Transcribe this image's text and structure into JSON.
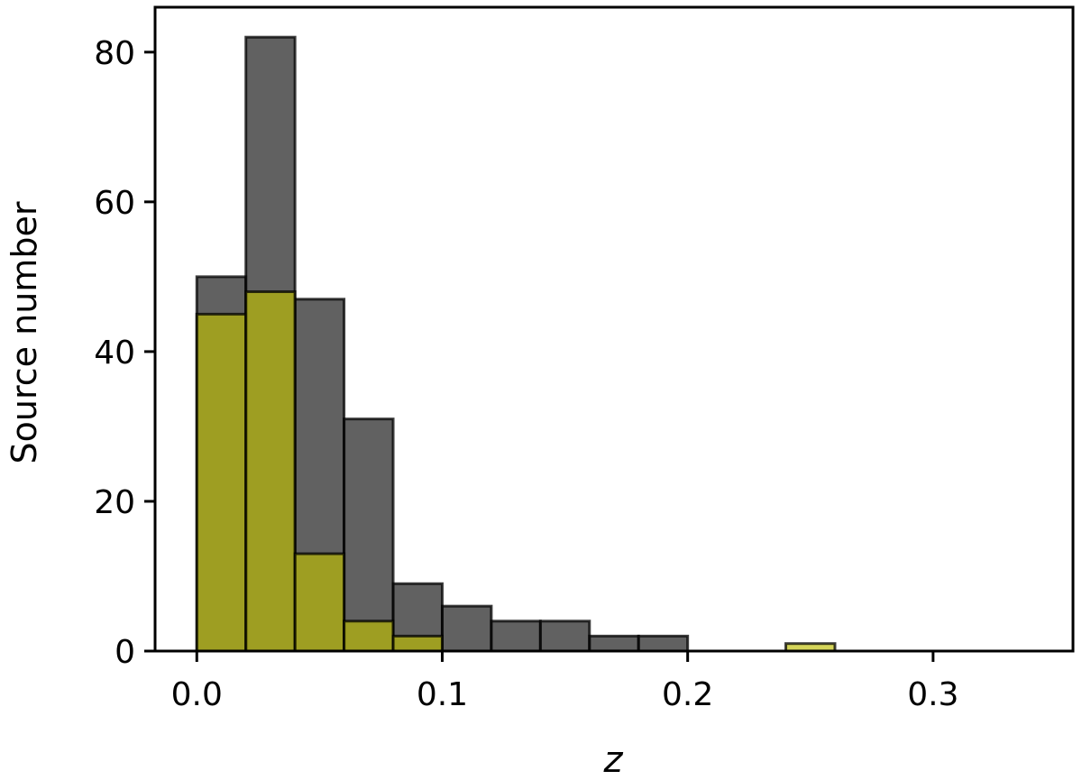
{
  "chart_data": {
    "type": "bar",
    "xlabel": "z",
    "ylabel": "Source number",
    "xlim": [
      -0.017,
      0.357
    ],
    "ylim": [
      0,
      86
    ],
    "x_ticks": [
      0.0,
      0.1,
      0.2,
      0.3
    ],
    "x_tick_labels": [
      "0.0",
      "0.1",
      "0.2",
      "0.3"
    ],
    "y_ticks": [
      0,
      20,
      40,
      60,
      80
    ],
    "y_tick_labels": [
      "0",
      "20",
      "40",
      "60",
      "80"
    ],
    "grid": false,
    "legend": "none",
    "series": [
      {
        "color": "#3a3a3a",
        "bins": [
          {
            "x0": 0.0,
            "x1": 0.02,
            "value": 50
          },
          {
            "x0": 0.02,
            "x1": 0.04,
            "value": 82
          },
          {
            "x0": 0.04,
            "x1": 0.06,
            "value": 47
          },
          {
            "x0": 0.06,
            "x1": 0.08,
            "value": 31
          },
          {
            "x0": 0.08,
            "x1": 0.1,
            "value": 9
          },
          {
            "x0": 0.1,
            "x1": 0.12,
            "value": 6
          },
          {
            "x0": 0.12,
            "x1": 0.14,
            "value": 4
          },
          {
            "x0": 0.14,
            "x1": 0.16,
            "value": 4
          },
          {
            "x0": 0.16,
            "x1": 0.18,
            "value": 2
          },
          {
            "x0": 0.18,
            "x1": 0.2,
            "value": 2
          },
          {
            "x0": 0.2,
            "x1": 0.22,
            "value": 0
          },
          {
            "x0": 0.22,
            "x1": 0.24,
            "value": 0
          },
          {
            "x0": 0.24,
            "x1": 0.26,
            "value": 0
          },
          {
            "x0": 0.26,
            "x1": 0.28,
            "value": 0
          },
          {
            "x0": 0.28,
            "x1": 0.3,
            "value": 0
          },
          {
            "x0": 0.3,
            "x1": 0.32,
            "value": 0
          },
          {
            "x0": 0.32,
            "x1": 0.34,
            "value": 0
          }
        ]
      },
      {
        "color": "#bfbf00",
        "bins": [
          {
            "x0": 0.0,
            "x1": 0.02,
            "value": 45
          },
          {
            "x0": 0.02,
            "x1": 0.04,
            "value": 48
          },
          {
            "x0": 0.04,
            "x1": 0.06,
            "value": 13
          },
          {
            "x0": 0.06,
            "x1": 0.08,
            "value": 4
          },
          {
            "x0": 0.08,
            "x1": 0.1,
            "value": 2
          },
          {
            "x0": 0.24,
            "x1": 0.26,
            "value": 1
          }
        ]
      }
    ]
  }
}
